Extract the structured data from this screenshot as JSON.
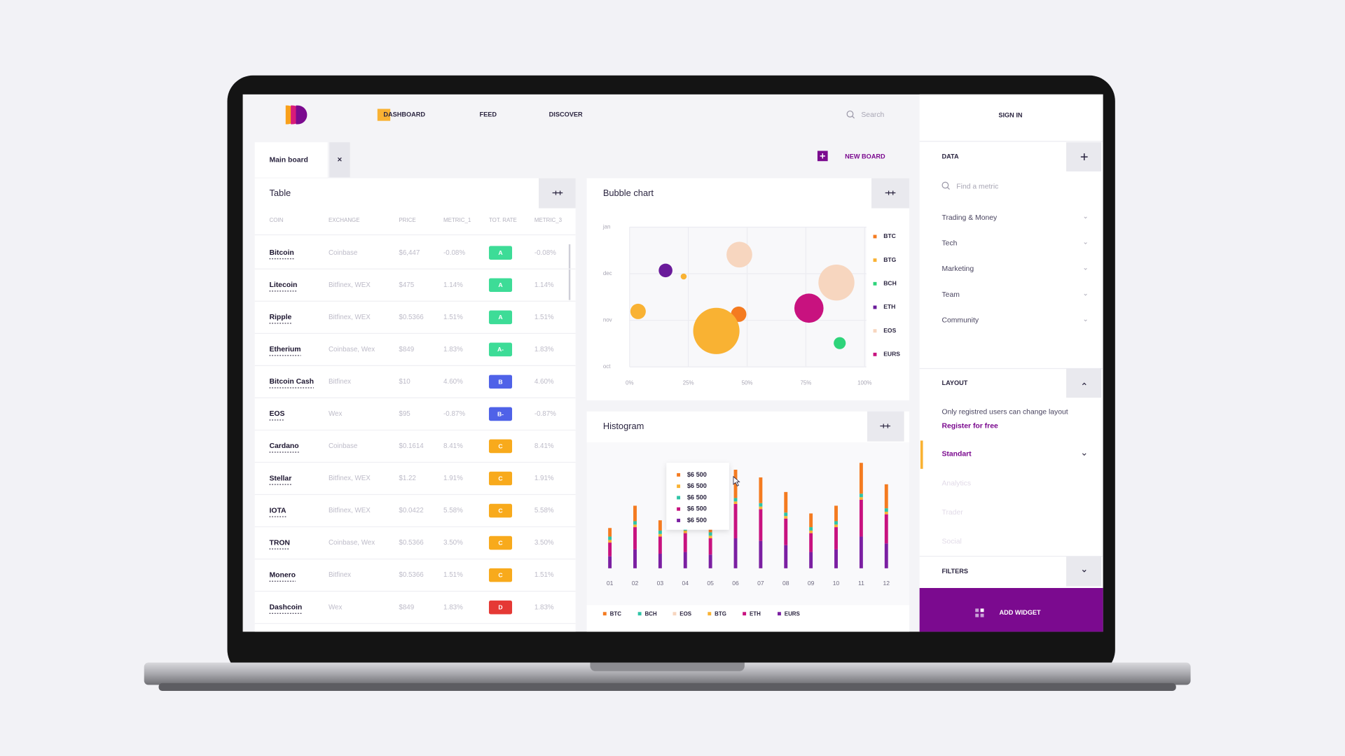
{
  "nav": {
    "items": [
      "DASHBOARD",
      "FEED",
      "DISCOVER"
    ],
    "search": "Search"
  },
  "board": {
    "tab": "Main board",
    "new_board": "NEW BOARD"
  },
  "table": {
    "title": "Table",
    "columns": [
      "COIN",
      "EXCHANGE",
      "PRICE",
      "METRIC_1",
      "TOT. RATE",
      "METRIC_3"
    ],
    "rows": [
      {
        "coin": "Bitcoin",
        "exchange": "Coinbase",
        "price": "$6,447",
        "metric_1": "-0.08%",
        "rate": "A",
        "rate_color": "#3ddc97",
        "metric_3": "-0.08%"
      },
      {
        "coin": "Litecoin",
        "exchange": "Bitfinex, WEX",
        "price": "$475",
        "metric_1": "1.14%",
        "rate": "A",
        "rate_color": "#3ddc97",
        "metric_3": "1.14%"
      },
      {
        "coin": "Ripple",
        "exchange": "Bitfinex, WEX",
        "price": "$0.5366",
        "metric_1": "1.51%",
        "rate": "A",
        "rate_color": "#3ddc97",
        "metric_3": "1.51%"
      },
      {
        "coin": "Etherium",
        "exchange": "Coinbase, Wex",
        "price": "$849",
        "metric_1": "1.83%",
        "rate": "A-",
        "rate_color": "#3ddc97",
        "metric_3": "1.83%"
      },
      {
        "coin": "Bitcoin Cash",
        "exchange": "Bitfinex",
        "price": "$10",
        "metric_1": "4.60%",
        "rate": "B",
        "rate_color": "#4f62e8",
        "metric_3": "4.60%"
      },
      {
        "coin": "EOS",
        "exchange": "Wex",
        "price": "$95",
        "metric_1": "-0.87%",
        "rate": "B-",
        "rate_color": "#4f62e8",
        "metric_3": "-0.87%"
      },
      {
        "coin": "Cardano",
        "exchange": "Coinbase",
        "price": "$0.1614",
        "metric_1": "8.41%",
        "rate": "C",
        "rate_color": "#f8aa1c",
        "metric_3": "8.41%"
      },
      {
        "coin": "Stellar",
        "exchange": "Bitfinex, WEX",
        "price": "$1.22",
        "metric_1": "1.91%",
        "rate": "C",
        "rate_color": "#f8aa1c",
        "metric_3": "1.91%"
      },
      {
        "coin": "IOTA",
        "exchange": "Bitfinex, WEX",
        "price": "$0.0422",
        "metric_1": "5.58%",
        "rate": "C",
        "rate_color": "#f8aa1c",
        "metric_3": "5.58%"
      },
      {
        "coin": "TRON",
        "exchange": "Coinbase, Wex",
        "price": "$0.5366",
        "metric_1": "3.50%",
        "rate": "C",
        "rate_color": "#f8aa1c",
        "metric_3": "3.50%"
      },
      {
        "coin": "Monero",
        "exchange": "Bitfinex",
        "price": "$0.5366",
        "metric_1": "1.51%",
        "rate": "C",
        "rate_color": "#f8aa1c",
        "metric_3": "1.51%"
      },
      {
        "coin": "Dashcoin",
        "exchange": "Wex",
        "price": "$849",
        "metric_1": "1.83%",
        "rate": "D",
        "rate_color": "#e53935",
        "metric_3": "1.83%"
      }
    ]
  },
  "chart_data": [
    {
      "type": "bubble",
      "title": "Bubble chart",
      "xlim": [
        0,
        100
      ],
      "xticks": [
        {
          "value": 0,
          "label": "0%"
        },
        {
          "value": 25,
          "label": "25%"
        },
        {
          "value": 50,
          "label": "50%"
        },
        {
          "value": 75,
          "label": "75%"
        },
        {
          "value": 100,
          "label": "100%"
        }
      ],
      "ylim": [
        0,
        3
      ],
      "yticks": [
        {
          "value": 3,
          "label": "jan"
        },
        {
          "value": 2,
          "label": "dec"
        },
        {
          "value": 1,
          "label": "nov"
        },
        {
          "value": 0,
          "label": "oct"
        }
      ],
      "grid": true,
      "series": [
        {
          "name": "BTC",
          "color": "#f47b20",
          "x": [
            46.4
          ],
          "values": [
            1.13
          ],
          "sizes": [
            9
          ]
        },
        {
          "name": "BTG",
          "color": "#f9b233",
          "x": [
            36.9,
            3.6,
            23.0
          ],
          "values": [
            0.77,
            1.19,
            1.94
          ],
          "sizes": [
            27,
            9,
            3.5
          ]
        },
        {
          "name": "BCH",
          "color": "#2ed47a",
          "x": [
            89.4
          ],
          "values": [
            0.51
          ],
          "sizes": [
            7
          ]
        },
        {
          "name": "ETH",
          "color": "#6a1b9a",
          "x": [
            15.3
          ],
          "values": [
            2.07
          ],
          "sizes": [
            8
          ]
        },
        {
          "name": "EOS",
          "color": "#f7d6bf",
          "x": [
            46.7,
            88.0
          ],
          "values": [
            2.41,
            1.81
          ],
          "sizes": [
            15,
            21
          ]
        },
        {
          "name": "EURS",
          "color": "#c8127f",
          "x": [
            76.3
          ],
          "values": [
            1.26
          ],
          "sizes": [
            17
          ]
        }
      ]
    },
    {
      "type": "stacked_bar",
      "title": "Histogram",
      "categories": [
        "01",
        "02",
        "03",
        "04",
        "05",
        "06",
        "07",
        "08",
        "09",
        "10",
        "11",
        "12"
      ],
      "series": [
        {
          "name": "BTC",
          "color": "#f47b20",
          "values": [
            1000,
            1800,
            1200,
            1500,
            1100,
            3300,
            3000,
            2400,
            1600,
            1800,
            3600,
            2800
          ]
        },
        {
          "name": "BCH",
          "color": "#2ec4a6",
          "values": [
            400,
            400,
            400,
            400,
            400,
            400,
            400,
            400,
            400,
            400,
            400,
            400
          ]
        },
        {
          "name": "EOS",
          "color": "#f7d6bf",
          "values": [
            0,
            0,
            0,
            0,
            0,
            0,
            0,
            0,
            0,
            0,
            0,
            0
          ]
        },
        {
          "name": "BTG",
          "color": "#f9b233",
          "values": [
            300,
            300,
            300,
            300,
            300,
            300,
            300,
            300,
            300,
            300,
            300,
            300
          ]
        },
        {
          "name": "ETH",
          "color": "#c8127f",
          "values": [
            1600,
            2600,
            2000,
            2200,
            1900,
            4000,
            3700,
            3100,
            2200,
            2600,
            4300,
            3400
          ]
        },
        {
          "name": "EURS",
          "color": "#7b1fa2",
          "values": [
            1400,
            2200,
            1700,
            1900,
            1600,
            3500,
            3200,
            2700,
            1900,
            2200,
            3700,
            2900
          ]
        }
      ],
      "tooltip": {
        "labels": [
          "$6 500",
          "$6 500",
          "$6 500",
          "$6 500",
          "$6 500"
        ],
        "colors": [
          "#f47b20",
          "#f9b233",
          "#2ec4a6",
          "#c8127f",
          "#7b1fa2"
        ]
      }
    }
  ],
  "sidebar": {
    "sign_in": "SIGN IN",
    "data": {
      "title": "DATA",
      "search": "Find a metric",
      "items": [
        "Trading & Money",
        "Tech",
        "Marketing",
        "Team",
        "Community"
      ]
    },
    "layout": {
      "title": "LAYOUT",
      "note": "Only registred users can change layout",
      "register": "Register for free",
      "options": [
        "Standart",
        "Analytics",
        "Trader",
        "Social"
      ]
    },
    "filters": "FILTERS",
    "add_widget": "ADD WIDGET"
  }
}
